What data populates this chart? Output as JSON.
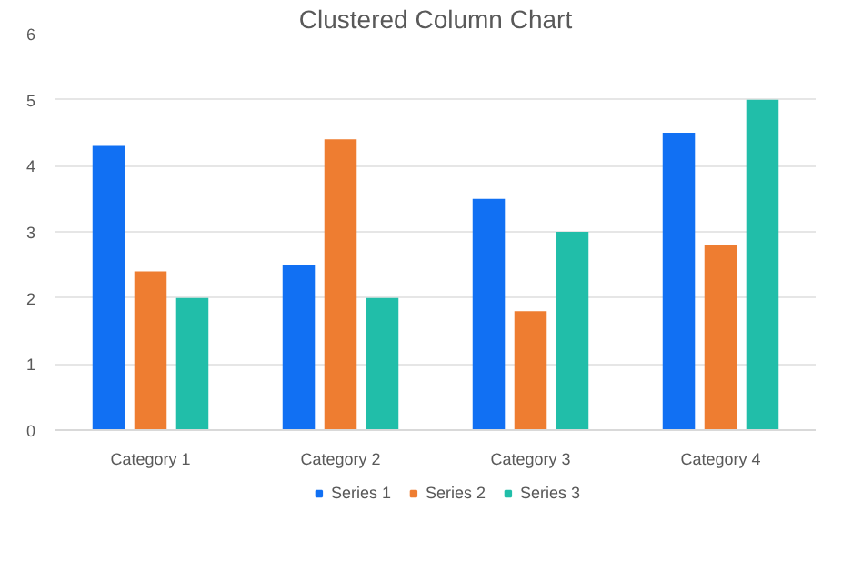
{
  "chart_data": {
    "type": "bar",
    "title": "Clustered Column Chart",
    "categories": [
      "Category 1",
      "Category 2",
      "Category 3",
      "Category 4"
    ],
    "series": [
      {
        "name": "Series 1",
        "color": "#1170f3",
        "values": [
          4.3,
          2.5,
          3.5,
          4.5
        ]
      },
      {
        "name": "Series 2",
        "color": "#ee7d31",
        "values": [
          2.4,
          4.4,
          1.8,
          2.8
        ]
      },
      {
        "name": "Series 3",
        "color": "#21bea9",
        "values": [
          2,
          2,
          3,
          5
        ]
      }
    ],
    "ylim": [
      0,
      6
    ],
    "yticks": [
      0,
      1,
      2,
      3,
      4,
      5,
      6
    ],
    "grid": "y",
    "legend": "bottom"
  }
}
